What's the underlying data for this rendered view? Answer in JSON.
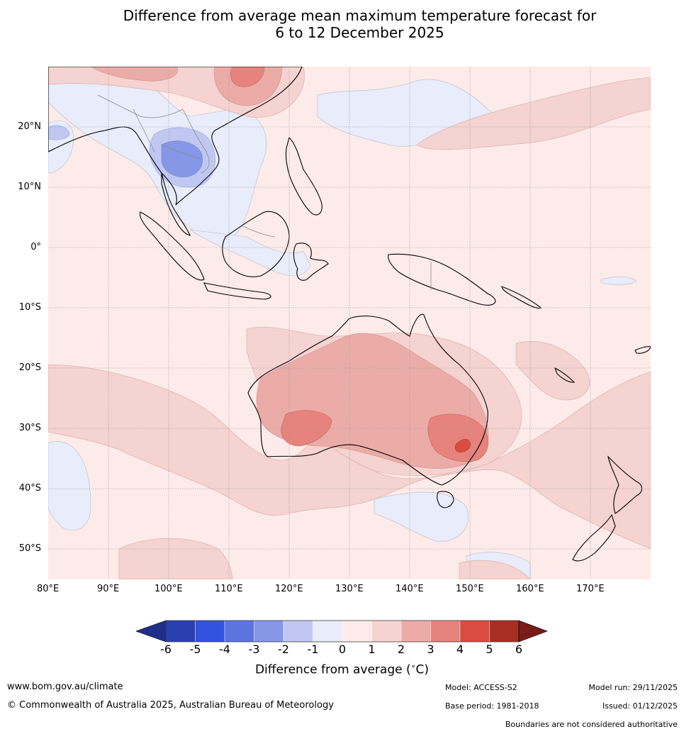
{
  "title": {
    "line1": "Difference from average mean maximum temperature forecast for",
    "line2": "6 to 12 December 2025"
  },
  "map": {
    "lat_labels": [
      "20°N",
      "10°N",
      "0°",
      "10°S",
      "20°S",
      "30°S",
      "40°S",
      "50°S"
    ],
    "lon_labels": [
      "80°E",
      "90°E",
      "100°E",
      "110°E",
      "120°E",
      "130°E",
      "140°E",
      "150°E",
      "160°E",
      "170°E"
    ]
  },
  "colorbar": {
    "ticks": [
      "-6",
      "-5",
      "-4",
      "-3",
      "-2",
      "-1",
      "0",
      "1",
      "2",
      "3",
      "4",
      "5",
      "6"
    ],
    "colors": [
      "#1f2e8a",
      "#2a3fb0",
      "#3352e0",
      "#5c74e0",
      "#8797e8",
      "#c0c8f2",
      "#e8ecfb",
      "#fcebe9",
      "#f4d3d0",
      "#ebaca8",
      "#e5837c",
      "#d94c40",
      "#a82d22",
      "#7a1b18"
    ],
    "label": "Difference from average (",
    "label_unit": "C)"
  },
  "footer": {
    "website": "www.bom.gov.au/climate",
    "copyright": "© Commonwealth of Australia 2025, Australian Bureau of Meteorology",
    "model": "Model: ACCESS-S2",
    "base_period": "Base period: 1981-2018",
    "model_run": "Model run: 29/11/2025",
    "issued": "Issued: 01/12/2025",
    "disclaimer": "Boundaries are not considered authoritative"
  }
}
